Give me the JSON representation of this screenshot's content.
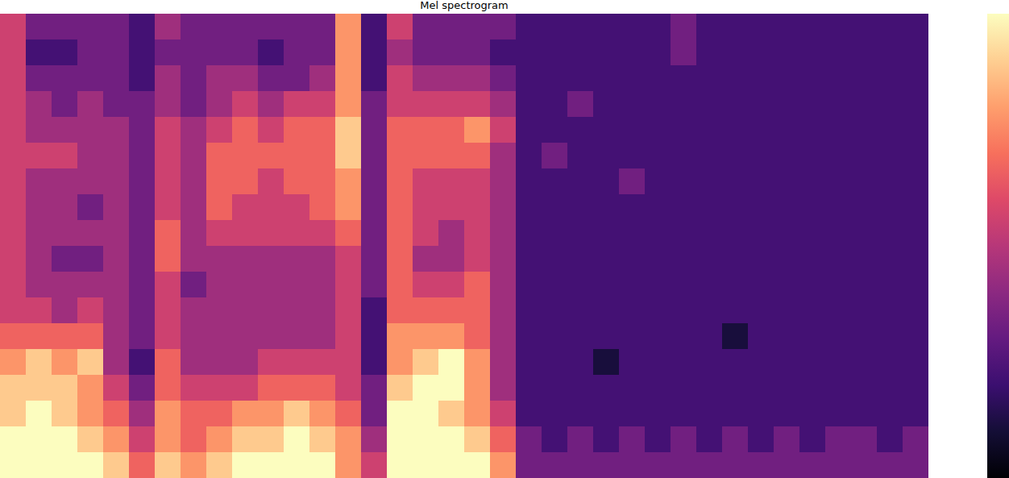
{
  "chart_data": {
    "type": "heatmap",
    "title": "Mel spectrogram",
    "tick_labels": false,
    "colorbar": {
      "range": [
        0,
        9
      ]
    },
    "cells": [
      [
        5,
        5,
        5,
        5,
        5,
        5,
        5,
        5,
        5,
        5,
        5,
        5,
        6,
        7,
        8,
        8,
        9,
        9
      ],
      [
        3,
        2,
        3,
        4,
        4,
        5,
        4,
        4,
        4,
        4,
        4,
        5,
        6,
        8,
        8,
        9,
        9,
        9
      ],
      [
        3,
        2,
        3,
        3,
        4,
        5,
        4,
        4,
        4,
        3,
        4,
        4,
        6,
        7,
        8,
        8,
        9,
        9
      ],
      [
        3,
        3,
        3,
        4,
        4,
        4,
        4,
        3,
        4,
        3,
        4,
        5,
        6,
        8,
        7,
        7,
        8,
        9
      ],
      [
        3,
        3,
        3,
        3,
        4,
        4,
        4,
        4,
        4,
        4,
        4,
        4,
        4,
        4,
        5,
        6,
        7,
        8
      ],
      [
        2,
        2,
        2,
        3,
        3,
        3,
        3,
        3,
        3,
        3,
        3,
        3,
        3,
        2,
        3,
        4,
        5,
        6
      ],
      [
        4,
        3,
        4,
        4,
        5,
        5,
        5,
        5,
        6,
        6,
        5,
        5,
        5,
        6,
        6,
        7,
        7,
        8
      ],
      [
        3,
        3,
        3,
        3,
        4,
        4,
        4,
        4,
        4,
        4,
        3,
        4,
        4,
        4,
        5,
        6,
        6,
        7
      ],
      [
        3,
        3,
        4,
        4,
        5,
        6,
        6,
        6,
        5,
        4,
        4,
        4,
        4,
        4,
        5,
        6,
        7,
        8
      ],
      [
        3,
        3,
        4,
        5,
        6,
        6,
        6,
        5,
        5,
        4,
        4,
        4,
        4,
        4,
        5,
        7,
        8,
        9
      ],
      [
        3,
        2,
        3,
        4,
        5,
        6,
        5,
        5,
        5,
        4,
        4,
        4,
        4,
        5,
        6,
        7,
        8,
        9
      ],
      [
        3,
        3,
        3,
        5,
        6,
        6,
        6,
        5,
        5,
        4,
        4,
        4,
        4,
        5,
        6,
        8,
        9,
        9
      ],
      [
        3,
        3,
        4,
        5,
        6,
        6,
        6,
        6,
        5,
        4,
        4,
        4,
        4,
        5,
        6,
        7,
        8,
        9
      ],
      [
        7,
        7,
        7,
        7,
        8,
        8,
        7,
        7,
        6,
        5,
        5,
        5,
        5,
        5,
        5,
        6,
        7,
        7
      ],
      [
        2,
        2,
        2,
        3,
        3,
        3,
        3,
        3,
        3,
        3,
        3,
        2,
        2,
        2,
        3,
        3,
        4,
        5
      ],
      [
        5,
        4,
        5,
        5,
        6,
        6,
        6,
        6,
        6,
        6,
        6,
        6,
        7,
        7,
        8,
        9,
        9,
        9
      ],
      [
        3,
        3,
        4,
        5,
        6,
        6,
        5,
        5,
        5,
        4,
        5,
        6,
        7,
        8,
        9,
        9,
        9,
        9
      ],
      [
        3,
        3,
        4,
        5,
        6,
        6,
        5,
        5,
        4,
        4,
        5,
        6,
        7,
        9,
        9,
        8,
        9,
        9
      ],
      [
        3,
        3,
        4,
        5,
        7,
        6,
        5,
        5,
        5,
        5,
        6,
        6,
        6,
        7,
        7,
        7,
        8,
        9
      ],
      [
        3,
        2,
        3,
        4,
        5,
        4,
        4,
        4,
        4,
        4,
        4,
        4,
        4,
        4,
        4,
        5,
        6,
        7
      ],
      [
        2,
        2,
        2,
        2,
        2,
        2,
        2,
        2,
        2,
        2,
        2,
        2,
        2,
        2,
        2,
        2,
        3,
        3
      ],
      [
        2,
        2,
        2,
        2,
        2,
        3,
        2,
        2,
        2,
        2,
        2,
        2,
        2,
        2,
        2,
        2,
        2,
        3
      ],
      [
        2,
        2,
        2,
        3,
        2,
        2,
        2,
        2,
        2,
        2,
        2,
        2,
        2,
        2,
        2,
        2,
        3,
        3
      ],
      [
        2,
        2,
        2,
        2,
        2,
        2,
        2,
        2,
        2,
        2,
        2,
        2,
        2,
        1,
        2,
        2,
        2,
        3
      ],
      [
        2,
        2,
        2,
        2,
        2,
        2,
        3,
        2,
        2,
        2,
        2,
        2,
        2,
        2,
        2,
        2,
        3,
        3
      ],
      [
        2,
        2,
        2,
        2,
        2,
        2,
        2,
        2,
        2,
        2,
        2,
        2,
        2,
        2,
        2,
        2,
        2,
        3
      ],
      [
        3,
        3,
        2,
        2,
        2,
        2,
        2,
        2,
        2,
        2,
        2,
        2,
        2,
        2,
        2,
        2,
        3,
        3
      ],
      [
        2,
        2,
        2,
        2,
        2,
        2,
        2,
        2,
        2,
        2,
        2,
        2,
        2,
        2,
        2,
        2,
        2,
        3
      ],
      [
        2,
        2,
        2,
        2,
        2,
        2,
        2,
        2,
        2,
        2,
        2,
        2,
        1,
        2,
        2,
        2,
        3,
        3
      ],
      [
        2,
        2,
        2,
        2,
        2,
        2,
        2,
        2,
        2,
        2,
        2,
        2,
        2,
        2,
        2,
        2,
        2,
        3
      ],
      [
        2,
        2,
        2,
        2,
        2,
        2,
        2,
        2,
        2,
        2,
        2,
        2,
        2,
        2,
        2,
        2,
        3,
        3
      ],
      [
        2,
        2,
        2,
        2,
        2,
        2,
        2,
        2,
        2,
        2,
        2,
        2,
        2,
        2,
        2,
        2,
        2,
        3
      ],
      [
        2,
        2,
        2,
        2,
        2,
        2,
        2,
        2,
        2,
        2,
        2,
        2,
        2,
        2,
        2,
        2,
        3,
        3
      ],
      [
        2,
        2,
        2,
        2,
        2,
        2,
        2,
        2,
        2,
        2,
        2,
        2,
        2,
        2,
        2,
        2,
        3,
        3
      ],
      [
        2,
        2,
        2,
        2,
        2,
        2,
        2,
        2,
        2,
        2,
        2,
        2,
        2,
        2,
        2,
        2,
        2,
        3
      ],
      [
        2,
        2,
        2,
        2,
        2,
        2,
        2,
        2,
        2,
        2,
        2,
        2,
        2,
        2,
        2,
        2,
        3,
        3
      ]
    ]
  }
}
